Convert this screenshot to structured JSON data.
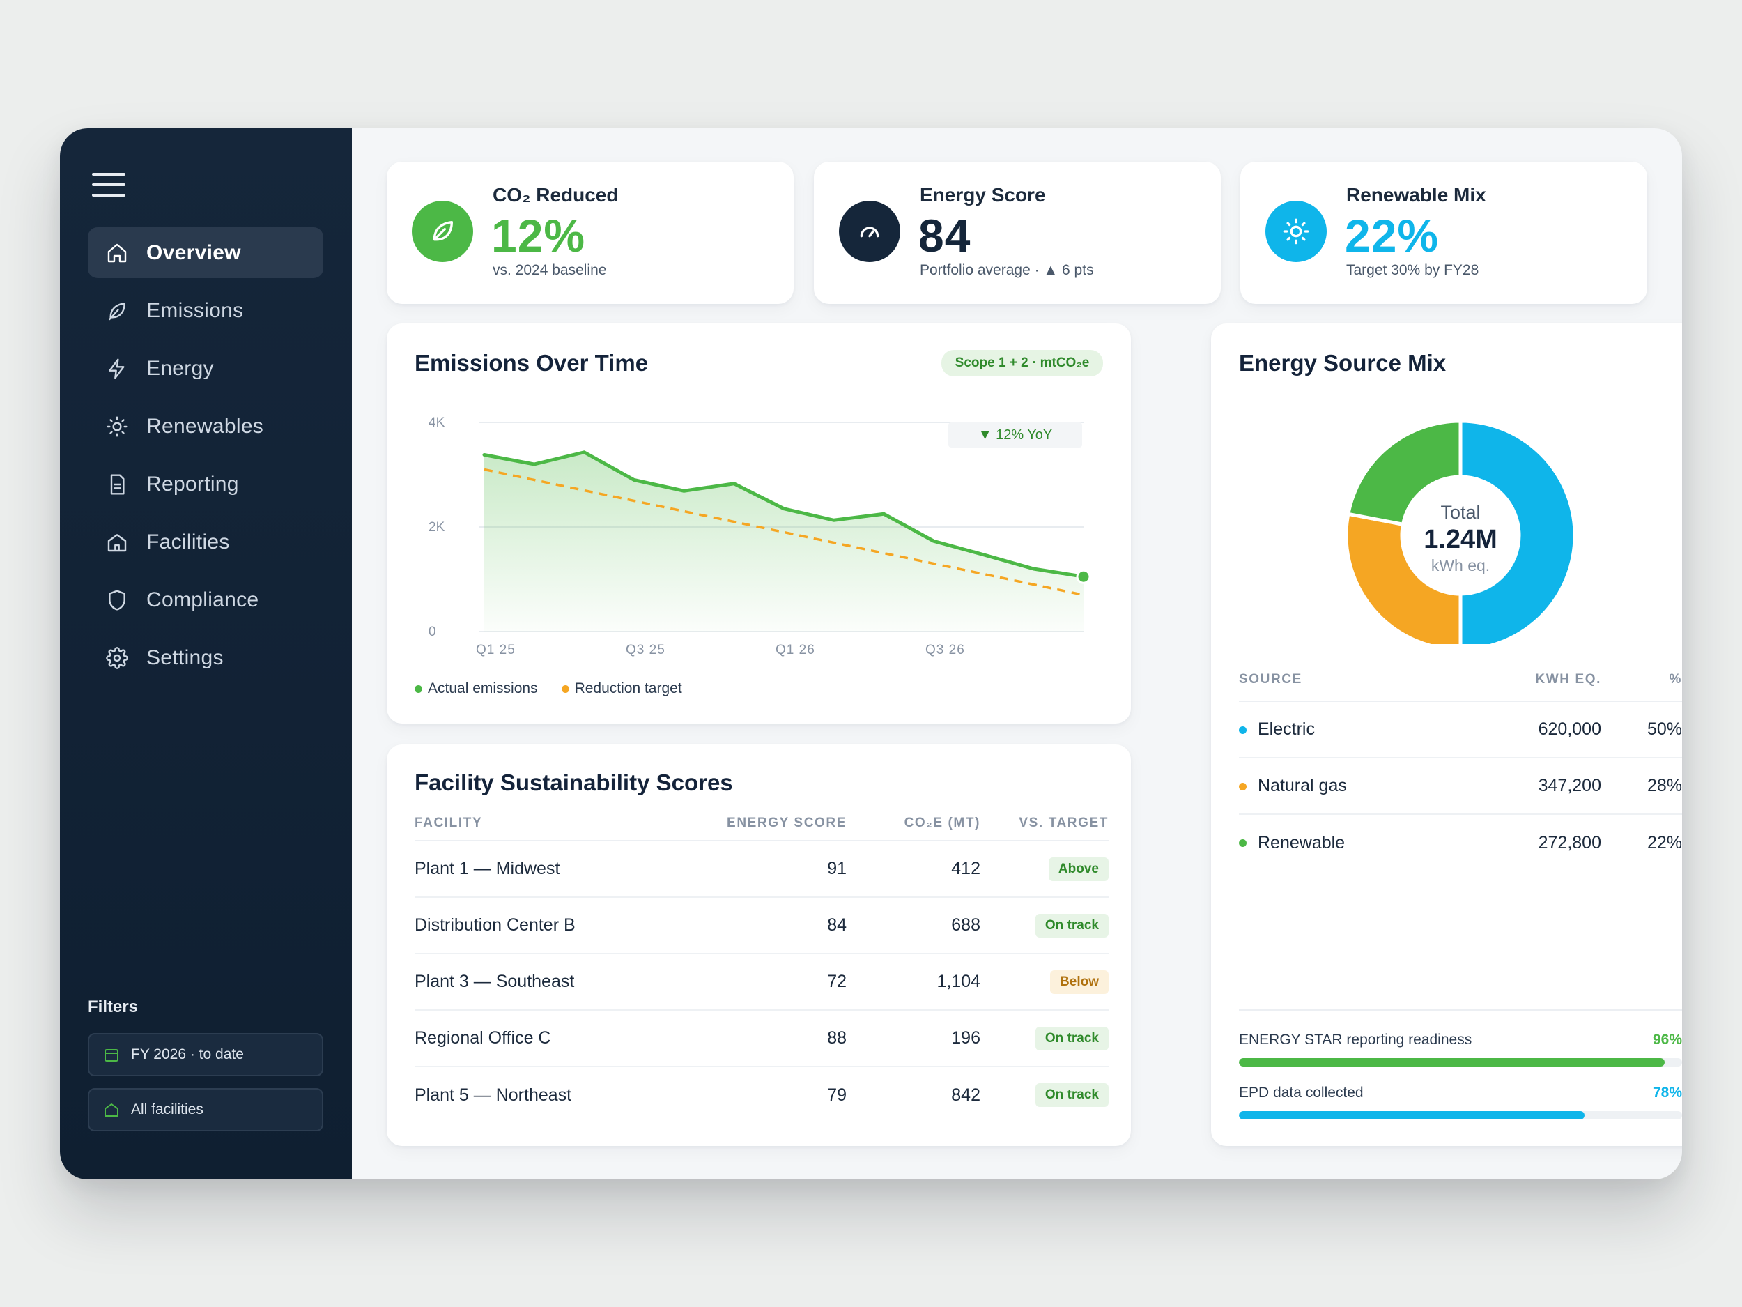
{
  "nav": {
    "items": [
      {
        "label": "Overview",
        "icon": "home-icon"
      },
      {
        "label": "Emissions",
        "icon": "leaf-icon"
      },
      {
        "label": "Energy",
        "icon": "bolt-icon"
      },
      {
        "label": "Renewables",
        "icon": "sun-icon"
      },
      {
        "label": "Reporting",
        "icon": "document-icon"
      },
      {
        "label": "Facilities",
        "icon": "building-icon"
      },
      {
        "label": "Compliance",
        "icon": "shield-icon"
      },
      {
        "label": "Settings",
        "icon": "gear-icon"
      }
    ],
    "active": "Overview"
  },
  "filters": {
    "title": "Filters",
    "period": "FY 2026 · to date",
    "facility": "All facilities"
  },
  "kpis": [
    {
      "title": "CO₂ Reduced",
      "value": "12%",
      "sub": "vs. 2024 baseline",
      "color": "#4cb846",
      "icon": "leaf-icon"
    },
    {
      "title": "Energy Score",
      "value": "84",
      "sub": "Portfolio average · ▲ 6 pts",
      "color": "#15263a",
      "icon": "gauge-icon"
    },
    {
      "title": "Renewable Mix",
      "value": "22%",
      "sub": "Target 30% by FY28",
      "color": "#0fb5ea",
      "icon": "sun-icon"
    }
  ],
  "emissions": {
    "title": "Emissions Over Time",
    "badge": "Scope 1 + 2 · mtCO₂e",
    "yoy": "▼ 12% YoY",
    "legend_actual": "Actual emissions",
    "legend_target": "Reduction target"
  },
  "chart_data": {
    "type": "line",
    "title": "Emissions Over Time",
    "x_ticks": [
      "Q1 25",
      "Q3 25",
      "Q1 26",
      "Q3 26"
    ],
    "y_ticks": [
      "4K",
      "2K",
      "0"
    ],
    "ylim": [
      0,
      4000
    ],
    "series": [
      {
        "name": "Actual emissions",
        "color": "#4cb846",
        "x": [
          0,
          0.333,
          0.667,
          1,
          1.333,
          1.667,
          2,
          2.333,
          2.667,
          3,
          3.333,
          3.667,
          4
        ],
        "values": [
          3380,
          3200,
          3430,
          2900,
          2690,
          2830,
          2350,
          2130,
          2250,
          1730,
          1470,
          1200,
          1050
        ]
      },
      {
        "name": "Reduction target",
        "color": "#f5a623",
        "style": "dashed",
        "x": [
          0,
          4
        ],
        "values": [
          3100,
          700
        ]
      }
    ],
    "grid": true,
    "legend_position": "bottom-left"
  },
  "facilities": {
    "title": "Facility Sustainability Scores",
    "columns": [
      "FACILITY",
      "ENERGY SCORE",
      "CO₂E (MT)",
      "VS. TARGET"
    ],
    "rows": [
      {
        "name": "Plant 1 — Midwest",
        "score": "91",
        "co2e": "412",
        "status": "Above",
        "kind": "above"
      },
      {
        "name": "Distribution Center B",
        "score": "84",
        "co2e": "688",
        "status": "On track",
        "kind": "ontrack"
      },
      {
        "name": "Plant 3 — Southeast",
        "score": "72",
        "co2e": "1,104",
        "status": "Below",
        "kind": "below"
      },
      {
        "name": "Regional Office C",
        "score": "88",
        "co2e": "196",
        "status": "On track",
        "kind": "ontrack"
      },
      {
        "name": "Plant 5 — Northeast",
        "score": "79",
        "co2e": "842",
        "status": "On track",
        "kind": "ontrack"
      }
    ]
  },
  "energy_mix": {
    "title": "Energy Source Mix",
    "center_label": "Total",
    "center_value": "1.24M",
    "center_unit": "kWh eq.",
    "columns": [
      "SOURCE",
      "KWH EQ.",
      "%"
    ],
    "sources": [
      {
        "name": "Electric",
        "kwh": "620,000",
        "pct": "50%",
        "share": 0.5,
        "color": "#0fb5ea"
      },
      {
        "name": "Natural gas",
        "kwh": "347,200",
        "pct": "28%",
        "share": 0.28,
        "color": "#f5a623"
      },
      {
        "name": "Renewable",
        "kwh": "272,800",
        "pct": "22%",
        "share": 0.22,
        "color": "#4cb846"
      }
    ]
  },
  "progress": [
    {
      "label": "ENERGY STAR reporting readiness",
      "value": "96%",
      "fraction": 0.96,
      "color": "#4cb846"
    },
    {
      "label": "EPD data collected",
      "value": "78%",
      "fraction": 0.78,
      "color": "#0fb5ea"
    }
  ]
}
